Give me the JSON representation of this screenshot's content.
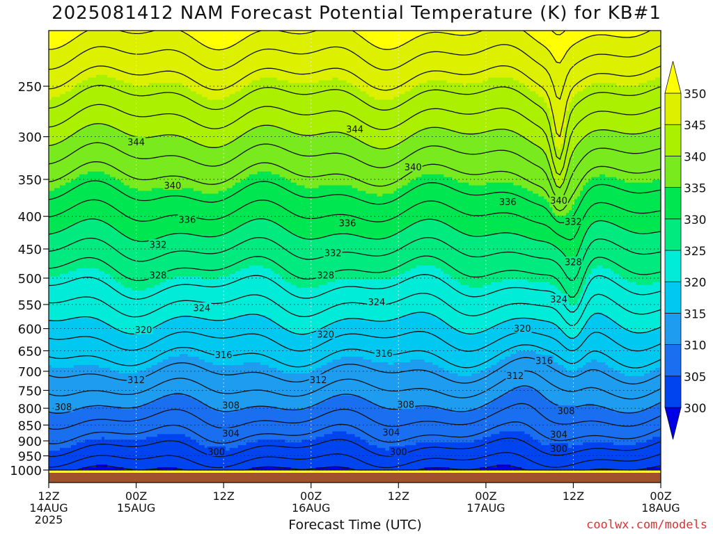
{
  "chart_data": {
    "type": "heatmap",
    "title": "2025081412 NAM Forecast Potential Temperature (K) for KB#1",
    "xlabel": "Forecast Time (UTC)",
    "ylabel": "",
    "variable": "Potential Temperature (K)",
    "y_scale": "log-pressure (hPa)",
    "x_ticks": [
      {
        "label": "12Z",
        "day": "14AUG",
        "year": "2025",
        "hour": 0
      },
      {
        "label": "00Z",
        "day": "15AUG",
        "year": "",
        "hour": 12
      },
      {
        "label": "12Z",
        "day": "",
        "year": "",
        "hour": 24
      },
      {
        "label": "00Z",
        "day": "16AUG",
        "year": "",
        "hour": 36
      },
      {
        "label": "12Z",
        "day": "",
        "year": "",
        "hour": 48
      },
      {
        "label": "00Z",
        "day": "17AUG",
        "year": "",
        "hour": 60
      },
      {
        "label": "12Z",
        "day": "",
        "year": "",
        "hour": 72
      },
      {
        "label": "00Z",
        "day": "18AUG",
        "year": "",
        "hour": 84
      }
    ],
    "xlim": [
      0,
      84
    ],
    "y_ticks": [
      250,
      300,
      350,
      400,
      450,
      500,
      550,
      600,
      650,
      700,
      750,
      800,
      850,
      900,
      950,
      1000
    ],
    "ylim": [
      1020,
      200
    ],
    "grid": "dotted",
    "colorbar": {
      "levels": [
        300,
        305,
        310,
        315,
        320,
        325,
        330,
        335,
        340,
        345,
        350
      ],
      "colors": [
        "#0000e6",
        "#0044f0",
        "#1a6ef0",
        "#1e9cf0",
        "#00c8f0",
        "#00ecd8",
        "#00ea80",
        "#00e650",
        "#78ea1e",
        "#aaf000",
        "#dcf000",
        "#ffff00"
      ],
      "extend": "both",
      "position": "right"
    },
    "contour_labels": [
      {
        "text": "344",
        "hour": 12,
        "p": 306
      },
      {
        "text": "344",
        "hour": 42,
        "p": 292
      },
      {
        "text": "340",
        "hour": 17,
        "p": 358
      },
      {
        "text": "340",
        "hour": 50,
        "p": 335
      },
      {
        "text": "340",
        "hour": 70,
        "p": 378
      },
      {
        "text": "336",
        "hour": 19,
        "p": 405
      },
      {
        "text": "336",
        "hour": 41,
        "p": 410
      },
      {
        "text": "336",
        "hour": 63,
        "p": 380
      },
      {
        "text": "332",
        "hour": 15,
        "p": 443
      },
      {
        "text": "332",
        "hour": 39,
        "p": 457
      },
      {
        "text": "332",
        "hour": 72,
        "p": 408
      },
      {
        "text": "328",
        "hour": 15,
        "p": 495
      },
      {
        "text": "328",
        "hour": 38,
        "p": 495
      },
      {
        "text": "328",
        "hour": 72,
        "p": 472
      },
      {
        "text": "324",
        "hour": 21,
        "p": 557
      },
      {
        "text": "324",
        "hour": 45,
        "p": 545
      },
      {
        "text": "324",
        "hour": 70,
        "p": 540
      },
      {
        "text": "320",
        "hour": 13,
        "p": 603
      },
      {
        "text": "320",
        "hour": 38,
        "p": 613
      },
      {
        "text": "320",
        "hour": 65,
        "p": 600
      },
      {
        "text": "316",
        "hour": 24,
        "p": 660
      },
      {
        "text": "316",
        "hour": 46,
        "p": 657
      },
      {
        "text": "316",
        "hour": 68,
        "p": 674
      },
      {
        "text": "312",
        "hour": 12,
        "p": 722
      },
      {
        "text": "312",
        "hour": 37,
        "p": 722
      },
      {
        "text": "312",
        "hour": 64,
        "p": 712
      },
      {
        "text": "308",
        "hour": 2,
        "p": 797
      },
      {
        "text": "308",
        "hour": 25,
        "p": 792
      },
      {
        "text": "308",
        "hour": 49,
        "p": 790
      },
      {
        "text": "308",
        "hour": 71,
        "p": 808
      },
      {
        "text": "304",
        "hour": 25,
        "p": 876
      },
      {
        "text": "304",
        "hour": 47,
        "p": 873
      },
      {
        "text": "304",
        "hour": 70,
        "p": 880
      },
      {
        "text": "300",
        "hour": 23,
        "p": 937
      },
      {
        "text": "300",
        "hour": 48,
        "p": 937
      },
      {
        "text": "300",
        "hour": 70,
        "p": 926
      }
    ]
  },
  "credit": "coolwx.com/models"
}
